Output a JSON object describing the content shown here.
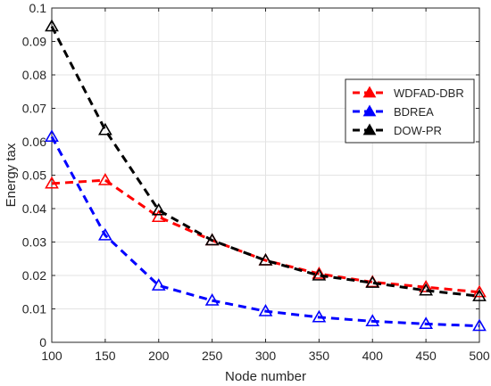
{
  "chart_data": {
    "type": "line",
    "title": "",
    "xlabel": "Node number",
    "ylabel": "Energy tax",
    "x": [
      100,
      150,
      200,
      250,
      300,
      350,
      400,
      450,
      500
    ],
    "xlim": [
      100,
      500
    ],
    "ylim": [
      0,
      0.1
    ],
    "xticks": [
      "100",
      "150",
      "200",
      "250",
      "300",
      "350",
      "400",
      "450",
      "500"
    ],
    "yticks": [
      "0",
      "0.01",
      "0.02",
      "0.03",
      "0.04",
      "0.05",
      "0.06",
      "0.07",
      "0.08",
      "0.09",
      "0.1"
    ],
    "grid": true,
    "legend_position": "upper-right",
    "series": [
      {
        "name": "WDFAD-DBR",
        "color": "#ff0000",
        "marker": "triangle",
        "values": [
          0.0475,
          0.0485,
          0.0375,
          0.0305,
          0.0245,
          0.0205,
          0.018,
          0.0165,
          0.015
        ]
      },
      {
        "name": "BDREA",
        "color": "#0000ff",
        "marker": "triangle",
        "values": [
          0.0615,
          0.032,
          0.017,
          0.0125,
          0.0093,
          0.0075,
          0.0063,
          0.0055,
          0.0049
        ]
      },
      {
        "name": "DOW-PR",
        "color": "#000000",
        "marker": "triangle",
        "values": [
          0.0945,
          0.0635,
          0.0395,
          0.0305,
          0.0245,
          0.02,
          0.0178,
          0.0155,
          0.0138
        ]
      }
    ]
  }
}
